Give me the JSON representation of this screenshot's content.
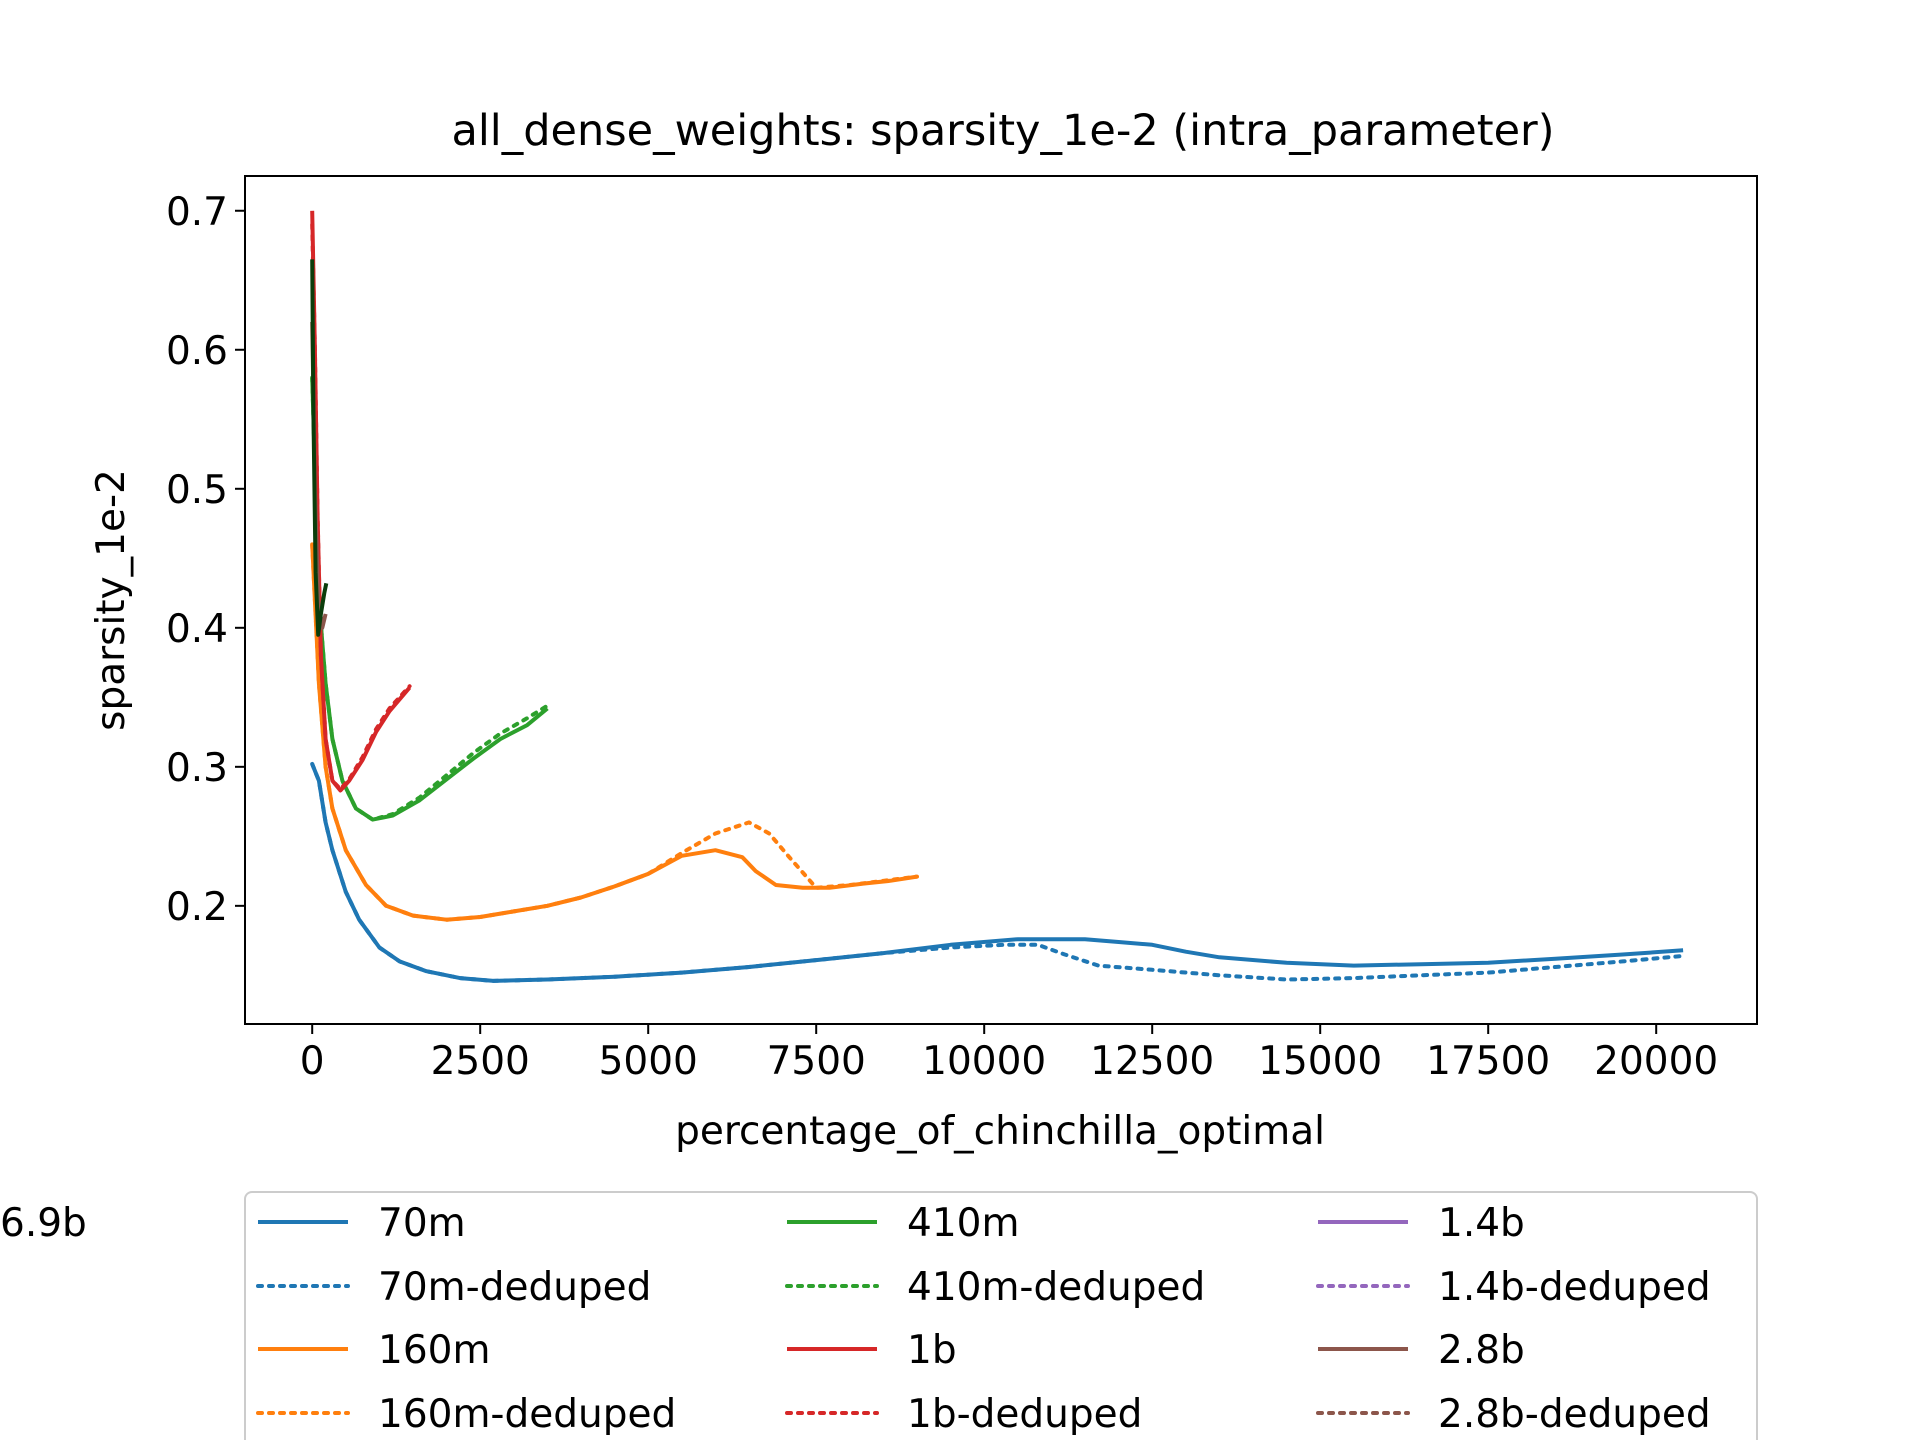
{
  "chart_data": {
    "type": "line",
    "title": "all_dense_weights: sparsity_1e-2 (intra_parameter)",
    "xlabel": "percentage_of_chinchilla_optimal",
    "ylabel": "sparsity_1e-2",
    "xlim": [
      -1000,
      21500
    ],
    "ylim": [
      0.115,
      0.725
    ],
    "xticks": [
      {
        "value": 0,
        "label": "0"
      },
      {
        "value": 2500,
        "label": "2500"
      },
      {
        "value": 5000,
        "label": "5000"
      },
      {
        "value": 7500,
        "label": "7500"
      },
      {
        "value": 10000,
        "label": "10000"
      },
      {
        "value": 12500,
        "label": "12500"
      },
      {
        "value": 15000,
        "label": "15000"
      },
      {
        "value": 17500,
        "label": "17500"
      },
      {
        "value": 20000,
        "label": "20000"
      }
    ],
    "yticks": [
      {
        "value": 0.2,
        "label": "0.2"
      },
      {
        "value": 0.3,
        "label": "0.3"
      },
      {
        "value": 0.4,
        "label": "0.4"
      },
      {
        "value": 0.5,
        "label": "0.5"
      },
      {
        "value": 0.6,
        "label": "0.6"
      },
      {
        "value": 0.7,
        "label": "0.7"
      }
    ],
    "grid": false,
    "legend_position": "below",
    "series": [
      {
        "name": "70m",
        "color": "#1f77b4",
        "style": "solid",
        "points": [
          [
            0,
            0.302
          ],
          [
            100,
            0.29
          ],
          [
            200,
            0.26
          ],
          [
            300,
            0.24
          ],
          [
            500,
            0.21
          ],
          [
            700,
            0.19
          ],
          [
            1000,
            0.17
          ],
          [
            1300,
            0.16
          ],
          [
            1700,
            0.153
          ],
          [
            2200,
            0.148
          ],
          [
            2700,
            0.146
          ],
          [
            3500,
            0.147
          ],
          [
            4500,
            0.149
          ],
          [
            5500,
            0.152
          ],
          [
            6500,
            0.156
          ],
          [
            7500,
            0.161
          ],
          [
            8500,
            0.166
          ],
          [
            9500,
            0.172
          ],
          [
            10500,
            0.176
          ],
          [
            11000,
            0.176
          ],
          [
            11500,
            0.176
          ],
          [
            12000,
            0.174
          ],
          [
            12500,
            0.172
          ],
          [
            13000,
            0.167
          ],
          [
            13500,
            0.163
          ],
          [
            14500,
            0.159
          ],
          [
            15500,
            0.157
          ],
          [
            16500,
            0.158
          ],
          [
            17500,
            0.159
          ],
          [
            18500,
            0.162
          ],
          [
            19500,
            0.165
          ],
          [
            20400,
            0.168
          ]
        ]
      },
      {
        "name": "70m-deduped",
        "color": "#1f77b4",
        "style": "dotted",
        "points": [
          [
            0,
            0.302
          ],
          [
            100,
            0.29
          ],
          [
            200,
            0.26
          ],
          [
            300,
            0.24
          ],
          [
            500,
            0.21
          ],
          [
            700,
            0.19
          ],
          [
            1000,
            0.17
          ],
          [
            1300,
            0.16
          ],
          [
            1700,
            0.153
          ],
          [
            2200,
            0.148
          ],
          [
            2700,
            0.146
          ],
          [
            3500,
            0.147
          ],
          [
            4500,
            0.149
          ],
          [
            5500,
            0.152
          ],
          [
            6500,
            0.156
          ],
          [
            7500,
            0.161
          ],
          [
            8500,
            0.166
          ],
          [
            9500,
            0.17
          ],
          [
            10300,
            0.172
          ],
          [
            10800,
            0.172
          ],
          [
            11200,
            0.165
          ],
          [
            11700,
            0.157
          ],
          [
            12500,
            0.154
          ],
          [
            13500,
            0.15
          ],
          [
            14500,
            0.147
          ],
          [
            15500,
            0.148
          ],
          [
            16500,
            0.15
          ],
          [
            17500,
            0.152
          ],
          [
            18500,
            0.156
          ],
          [
            19500,
            0.16
          ],
          [
            20400,
            0.164
          ]
        ]
      },
      {
        "name": "160m",
        "color": "#ff7f0e",
        "style": "solid",
        "points": [
          [
            0,
            0.46
          ],
          [
            100,
            0.36
          ],
          [
            200,
            0.3
          ],
          [
            300,
            0.27
          ],
          [
            500,
            0.24
          ],
          [
            800,
            0.215
          ],
          [
            1100,
            0.2
          ],
          [
            1500,
            0.193
          ],
          [
            2000,
            0.19
          ],
          [
            2500,
            0.192
          ],
          [
            3000,
            0.196
          ],
          [
            3500,
            0.2
          ],
          [
            4000,
            0.206
          ],
          [
            4500,
            0.214
          ],
          [
            5000,
            0.223
          ],
          [
            5500,
            0.236
          ],
          [
            6000,
            0.24
          ],
          [
            6400,
            0.235
          ],
          [
            6600,
            0.225
          ],
          [
            6900,
            0.215
          ],
          [
            7300,
            0.213
          ],
          [
            7700,
            0.213
          ],
          [
            8200,
            0.216
          ],
          [
            8600,
            0.218
          ],
          [
            9000,
            0.221
          ]
        ]
      },
      {
        "name": "160m-deduped",
        "color": "#ff7f0e",
        "style": "dotted",
        "points": [
          [
            0,
            0.46
          ],
          [
            100,
            0.36
          ],
          [
            200,
            0.3
          ],
          [
            300,
            0.27
          ],
          [
            500,
            0.24
          ],
          [
            800,
            0.215
          ],
          [
            1100,
            0.2
          ],
          [
            1500,
            0.193
          ],
          [
            2000,
            0.19
          ],
          [
            2500,
            0.192
          ],
          [
            3000,
            0.196
          ],
          [
            3500,
            0.2
          ],
          [
            4000,
            0.206
          ],
          [
            4500,
            0.214
          ],
          [
            5000,
            0.223
          ],
          [
            5500,
            0.238
          ],
          [
            6000,
            0.252
          ],
          [
            6500,
            0.26
          ],
          [
            6800,
            0.252
          ],
          [
            7100,
            0.235
          ],
          [
            7500,
            0.213
          ],
          [
            8000,
            0.215
          ],
          [
            8500,
            0.218
          ],
          [
            9000,
            0.221
          ]
        ]
      },
      {
        "name": "410m",
        "color": "#2ca02c",
        "style": "solid",
        "points": [
          [
            0,
            0.58
          ],
          [
            50,
            0.5
          ],
          [
            100,
            0.42
          ],
          [
            200,
            0.36
          ],
          [
            300,
            0.32
          ],
          [
            450,
            0.29
          ],
          [
            650,
            0.27
          ],
          [
            900,
            0.262
          ],
          [
            1200,
            0.265
          ],
          [
            1600,
            0.276
          ],
          [
            2000,
            0.291
          ],
          [
            2400,
            0.306
          ],
          [
            2800,
            0.32
          ],
          [
            3200,
            0.33
          ],
          [
            3500,
            0.342
          ]
        ]
      },
      {
        "name": "410m-deduped",
        "color": "#2ca02c",
        "style": "dotted",
        "points": [
          [
            0,
            0.58
          ],
          [
            50,
            0.5
          ],
          [
            100,
            0.42
          ],
          [
            200,
            0.36
          ],
          [
            300,
            0.32
          ],
          [
            450,
            0.29
          ],
          [
            650,
            0.27
          ],
          [
            900,
            0.262
          ],
          [
            1200,
            0.266
          ],
          [
            1600,
            0.278
          ],
          [
            2000,
            0.294
          ],
          [
            2400,
            0.31
          ],
          [
            2800,
            0.324
          ],
          [
            3200,
            0.335
          ],
          [
            3500,
            0.344
          ]
        ]
      },
      {
        "name": "1b",
        "color": "#d62728",
        "style": "solid",
        "points": [
          [
            0,
            0.7
          ],
          [
            40,
            0.6
          ],
          [
            80,
            0.48
          ],
          [
            130,
            0.38
          ],
          [
            200,
            0.32
          ],
          [
            300,
            0.29
          ],
          [
            420,
            0.283
          ],
          [
            550,
            0.29
          ],
          [
            750,
            0.305
          ],
          [
            950,
            0.325
          ],
          [
            1150,
            0.34
          ],
          [
            1450,
            0.357
          ]
        ]
      },
      {
        "name": "1b-deduped",
        "color": "#d62728",
        "style": "dotted",
        "points": [
          [
            0,
            0.69
          ],
          [
            40,
            0.6
          ],
          [
            80,
            0.48
          ],
          [
            130,
            0.38
          ],
          [
            200,
            0.32
          ],
          [
            300,
            0.29
          ],
          [
            420,
            0.284
          ],
          [
            550,
            0.291
          ],
          [
            750,
            0.307
          ],
          [
            950,
            0.327
          ],
          [
            1150,
            0.342
          ],
          [
            1450,
            0.358
          ]
        ]
      },
      {
        "name": "1.4b",
        "color": "#9467bd",
        "style": "solid",
        "points": []
      },
      {
        "name": "1.4b-deduped",
        "color": "#9467bd",
        "style": "dotted",
        "points": []
      },
      {
        "name": "2.8b",
        "color": "#8c564b",
        "style": "solid",
        "points": [
          [
            0,
            0.62
          ],
          [
            40,
            0.5
          ],
          [
            90,
            0.42
          ],
          [
            150,
            0.4
          ],
          [
            200,
            0.41
          ]
        ]
      },
      {
        "name": "2.8b-deduped",
        "color": "#8c564b",
        "style": "dotted",
        "points": []
      },
      {
        "name": "6.9b",
        "color": "#0b3d0b",
        "style": "solid",
        "points": [
          [
            0,
            0.665
          ],
          [
            20,
            0.55
          ],
          [
            50,
            0.44
          ],
          [
            90,
            0.395
          ],
          [
            130,
            0.41
          ],
          [
            180,
            0.425
          ],
          [
            210,
            0.432
          ]
        ]
      }
    ]
  }
}
